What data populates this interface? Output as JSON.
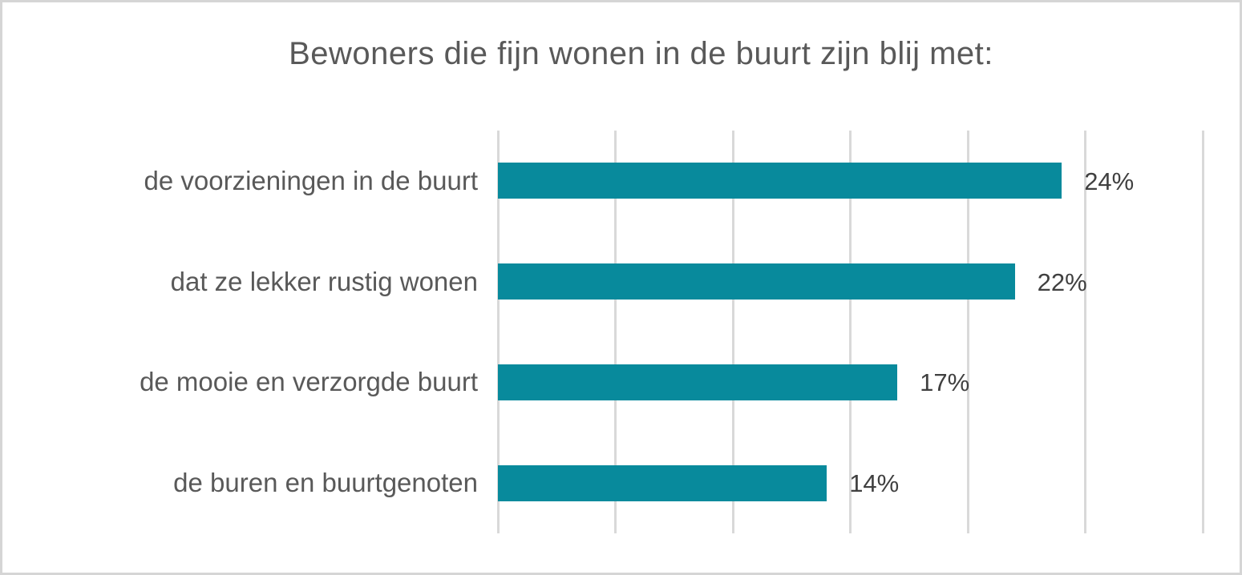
{
  "chart_data": {
    "type": "bar",
    "orientation": "horizontal",
    "title": "Bewoners die fijn wonen in de buurt zijn blij met:",
    "categories": [
      "de voorzieningen in de buurt",
      "dat ze lekker rustig wonen",
      "de mooie en verzorgde buurt",
      "de buren en buurtgenoten"
    ],
    "values": [
      24,
      22,
      17,
      14
    ],
    "data_labels": [
      "24%",
      "22%",
      "17%",
      "14%"
    ],
    "xlabel": "",
    "ylabel": "",
    "xlim": [
      0,
      30
    ],
    "gridline_interval": 5,
    "grid": true,
    "legend_position": "none",
    "axis_tick_labels_visible": false,
    "colors": {
      "bar": "#088a9c",
      "gridline": "#d9d9d9",
      "title_text": "#595959",
      "category_text": "#595959",
      "data_label_text": "#404040",
      "frame_border": "#d5d5d5",
      "background": "#ffffff"
    }
  }
}
